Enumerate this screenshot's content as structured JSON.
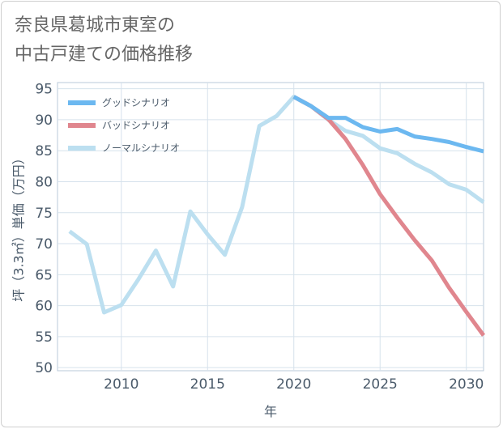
{
  "title": {
    "line1": "奈良県葛城市東室の",
    "line2": "中古戸建ての価格推移"
  },
  "chart_data": {
    "type": "line",
    "title": "奈良県葛城市東室の中古戸建ての価格推移",
    "xlabel": "年",
    "ylabel": "坪（3.3㎡）単価（万円）",
    "xlim": [
      2006.3,
      2031
    ],
    "ylim": [
      49.5,
      96
    ],
    "x_ticks": [
      2010,
      2015,
      2020,
      2025,
      2030
    ],
    "y_ticks": [
      50,
      55,
      60,
      65,
      70,
      75,
      80,
      85,
      90,
      95
    ],
    "grid": true,
    "legend_position": "top-left",
    "series": [
      {
        "name": "グッドシナリオ",
        "color": "#6cb8f0",
        "x": [
          2020,
          2021,
          2022,
          2023,
          2024,
          2025,
          2026,
          2027,
          2028,
          2029,
          2030,
          2031
        ],
        "values": [
          93.7,
          92.2,
          90.3,
          90.3,
          88.8,
          88.1,
          88.5,
          87.3,
          86.9,
          86.4,
          85.6,
          84.9
        ]
      },
      {
        "name": "バッドシナリオ",
        "color": "#e0868e",
        "x": [
          2020,
          2021,
          2022,
          2023,
          2024,
          2025,
          2026,
          2027,
          2028,
          2029,
          2030,
          2031
        ],
        "values": [
          93.7,
          92.2,
          90.1,
          86.9,
          82.7,
          78.0,
          74.2,
          70.6,
          67.3,
          62.9,
          59.0,
          55.2
        ]
      },
      {
        "name": "ノーマルシナリオ",
        "color": "#bcdff0",
        "x": [
          2007,
          2008,
          2009,
          2010,
          2011,
          2012,
          2013,
          2014,
          2015,
          2016,
          2017,
          2018,
          2019,
          2020,
          2021,
          2022,
          2023,
          2024,
          2025,
          2026,
          2027,
          2028,
          2029,
          2030,
          2031
        ],
        "values": [
          72.0,
          69.9,
          58.9,
          60.1,
          64.3,
          68.9,
          63.1,
          75.2,
          71.5,
          68.2,
          75.9,
          89.0,
          90.6,
          93.7,
          92.2,
          90.0,
          88.2,
          87.4,
          85.4,
          84.6,
          82.9,
          81.5,
          79.6,
          78.7,
          76.7
        ]
      }
    ]
  }
}
